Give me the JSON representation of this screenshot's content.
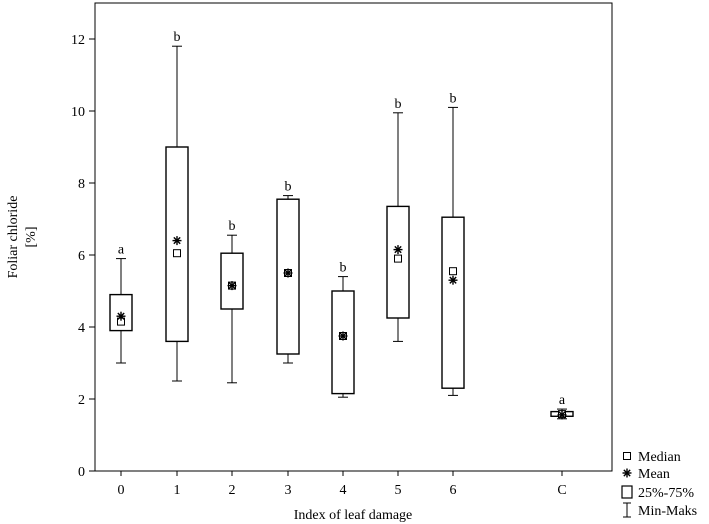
{
  "chart_data": {
    "type": "box",
    "xlabel": "Index of leaf damage",
    "ylabel_lines": [
      "Foliar chloride",
      "[%]"
    ],
    "ylim": [
      0,
      13
    ],
    "yticks": [
      0,
      2,
      4,
      6,
      8,
      10,
      12
    ],
    "grid": false,
    "legend_position": "bottom-right",
    "legend": [
      {
        "symbol": "square",
        "label": "Median"
      },
      {
        "symbol": "star",
        "label": "Mean"
      },
      {
        "symbol": "box",
        "label": "25%-75%"
      },
      {
        "symbol": "whisker",
        "label": "Min-Maks"
      }
    ],
    "boxes": [
      {
        "category": "0",
        "min": 3.0,
        "q1": 3.9,
        "median": 4.15,
        "mean": 4.3,
        "q3": 4.9,
        "max": 5.9,
        "group": "a"
      },
      {
        "category": "1",
        "min": 2.5,
        "q1": 3.6,
        "median": 6.05,
        "mean": 6.4,
        "q3": 9.0,
        "max": 11.8,
        "group": "b"
      },
      {
        "category": "2",
        "min": 2.45,
        "q1": 4.5,
        "median": 5.15,
        "mean": 5.15,
        "q3": 6.05,
        "max": 6.55,
        "group": "b"
      },
      {
        "category": "3",
        "min": 3.0,
        "q1": 3.25,
        "median": 5.5,
        "mean": 5.5,
        "q3": 7.55,
        "max": 7.65,
        "group": "b"
      },
      {
        "category": "4",
        "min": 2.05,
        "q1": 2.15,
        "median": 3.75,
        "mean": 3.75,
        "q3": 5.0,
        "max": 5.4,
        "group": "b"
      },
      {
        "category": "5",
        "min": 3.6,
        "q1": 4.25,
        "median": 5.9,
        "mean": 6.15,
        "q3": 7.35,
        "max": 9.95,
        "group": "b"
      },
      {
        "category": "6",
        "min": 2.1,
        "q1": 2.3,
        "median": 5.55,
        "mean": 5.3,
        "q3": 7.05,
        "max": 10.1,
        "group": "b"
      },
      {
        "category": "C",
        "min": 1.45,
        "q1": 1.52,
        "median": 1.58,
        "mean": 1.56,
        "q3": 1.65,
        "max": 1.72,
        "group": "a"
      }
    ]
  }
}
